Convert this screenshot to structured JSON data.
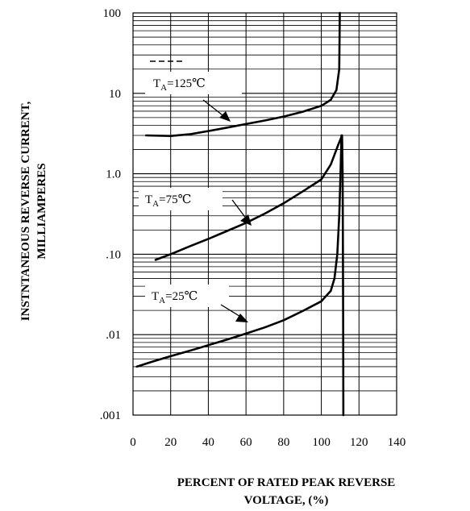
{
  "chart_data": {
    "type": "line",
    "title": "",
    "xlabel_lines": [
      "PERCENT OF RATED PEAK REVERSE",
      "VOLTAGE, (%)"
    ],
    "ylabel_lines": [
      "INSTNTANEOUS REVERSE CURRENT,",
      "MILLIAMPERES"
    ],
    "xlim": [
      0,
      140
    ],
    "ylim": [
      0.001,
      100
    ],
    "y_scale": "log",
    "grid": true,
    "x_ticks": [
      "0",
      "20",
      "40",
      "60",
      "80",
      "100",
      "120",
      "140"
    ],
    "y_ticks": [
      ".001",
      ".01",
      ".10",
      "1.0",
      "10",
      "100"
    ],
    "series": [
      {
        "T_main": "T",
        "T_sub": "A",
        "T_value": "=125℃",
        "points": [
          [
            7,
            3.0
          ],
          [
            20,
            2.95
          ],
          [
            30,
            3.1
          ],
          [
            40,
            3.4
          ],
          [
            50,
            3.75
          ],
          [
            60,
            4.15
          ],
          [
            70,
            4.6
          ],
          [
            80,
            5.15
          ],
          [
            90,
            5.9
          ],
          [
            100,
            7.0
          ],
          [
            105,
            8.3
          ],
          [
            108,
            11
          ],
          [
            109.5,
            20
          ],
          [
            109.8,
            100
          ]
        ]
      },
      {
        "T_main": "T",
        "T_sub": "A",
        "T_value": "=75℃",
        "points": [
          [
            12,
            0.085
          ],
          [
            20,
            0.1
          ],
          [
            30,
            0.125
          ],
          [
            40,
            0.155
          ],
          [
            50,
            0.195
          ],
          [
            60,
            0.245
          ],
          [
            70,
            0.32
          ],
          [
            80,
            0.43
          ],
          [
            90,
            0.6
          ],
          [
            100,
            0.85
          ],
          [
            105,
            1.3
          ],
          [
            109,
            2.3
          ],
          [
            111,
            3.0
          ],
          [
            111.3,
            1.0
          ],
          [
            111.5,
            0.1
          ],
          [
            111.6,
            0.01
          ],
          [
            111.7,
            0.001
          ]
        ]
      },
      {
        "T_main": "T",
        "T_sub": "A",
        "T_value": "=25℃",
        "points": [
          [
            2,
            0.004
          ],
          [
            10,
            0.0046
          ],
          [
            20,
            0.0054
          ],
          [
            30,
            0.0063
          ],
          [
            40,
            0.0074
          ],
          [
            50,
            0.0087
          ],
          [
            60,
            0.0103
          ],
          [
            70,
            0.0123
          ],
          [
            80,
            0.0151
          ],
          [
            90,
            0.0196
          ],
          [
            100,
            0.026
          ],
          [
            105,
            0.035
          ],
          [
            107,
            0.05
          ],
          [
            108.5,
            0.1
          ],
          [
            109.5,
            0.3
          ],
          [
            110.2,
            1.0
          ],
          [
            110.7,
            3.0
          ]
        ]
      }
    ]
  }
}
